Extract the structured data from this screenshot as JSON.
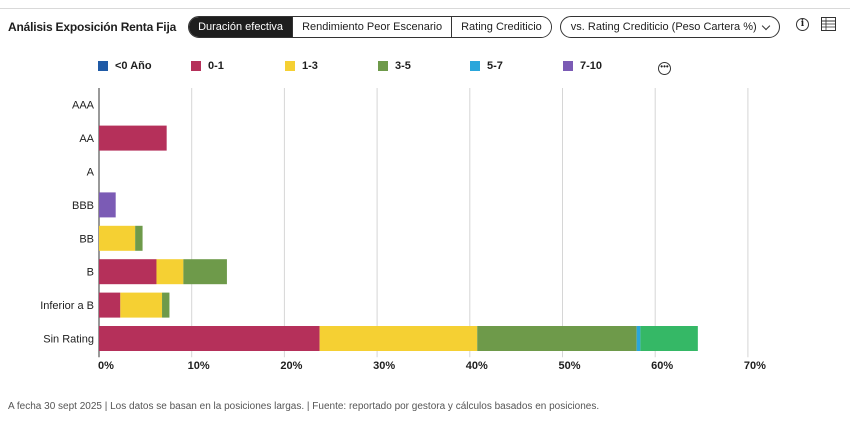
{
  "header": {
    "title": "Análisis Exposición Renta Fija",
    "tabs": [
      {
        "label": "Duración efectiva",
        "active": true
      },
      {
        "label": "Rendimiento Peor Escenario",
        "active": false
      },
      {
        "label": "Rating Crediticio",
        "active": false
      }
    ],
    "dropdown_label": "vs. Rating Crediticio (Peso Cartera %)",
    "icons": [
      "info-icon",
      "table-icon"
    ]
  },
  "legend": {
    "items": [
      {
        "label": "<0 Año",
        "color": "#1f5aa6"
      },
      {
        "label": "0-1",
        "color": "#b5305a"
      },
      {
        "label": "1-3",
        "color": "#f5d033"
      },
      {
        "label": "3-5",
        "color": "#6e9a4a"
      },
      {
        "label": "5-7",
        "color": "#2aa6db"
      },
      {
        "label": "7-10",
        "color": "#7b5bb5"
      }
    ],
    "more_icon": "more-icon"
  },
  "chart_data": {
    "type": "bar",
    "orientation": "horizontal",
    "stacked": true,
    "categories": [
      "AAA",
      "AA",
      "A",
      "BBB",
      "BB",
      "B",
      "Inferior a B",
      "Sin Rating"
    ],
    "series": [
      {
        "name": "<0 Año",
        "color": "#1f5aa6",
        "values": [
          0,
          0,
          0,
          0,
          0,
          0,
          0,
          0
        ]
      },
      {
        "name": "0-1",
        "color": "#b5305a",
        "values": [
          0,
          7.3,
          0,
          0,
          0,
          6.2,
          2.3,
          23.8
        ]
      },
      {
        "name": "1-3",
        "color": "#f5d033",
        "values": [
          0,
          0,
          0,
          0,
          3.9,
          2.9,
          4.5,
          17.0
        ]
      },
      {
        "name": "3-5",
        "color": "#6e9a4a",
        "values": [
          0,
          0,
          0,
          0,
          0.8,
          4.7,
          0.8,
          17.2
        ]
      },
      {
        "name": "5-7",
        "color": "#2aa6db",
        "values": [
          0,
          0,
          0,
          0,
          0,
          0,
          0,
          0.4
        ]
      },
      {
        "name": "7-10",
        "color": "#7b5bb5",
        "values": [
          0,
          0,
          0,
          1.8,
          0,
          0,
          0,
          0
        ]
      },
      {
        "name": "",
        "color": "#35b866",
        "values": [
          0,
          0,
          0,
          0,
          0,
          0,
          0,
          6.2
        ]
      }
    ],
    "xlim": [
      0,
      70
    ],
    "xticks": [
      "0%",
      "10%",
      "20%",
      "30%",
      "40%",
      "50%",
      "60%",
      "70%"
    ],
    "grid": true
  },
  "footer": {
    "note": "A fecha 30 sept 2025 | Los datos se basan en la posiciones largas. | Fuente: reportado por gestora y cálculos basados en posiciones."
  }
}
